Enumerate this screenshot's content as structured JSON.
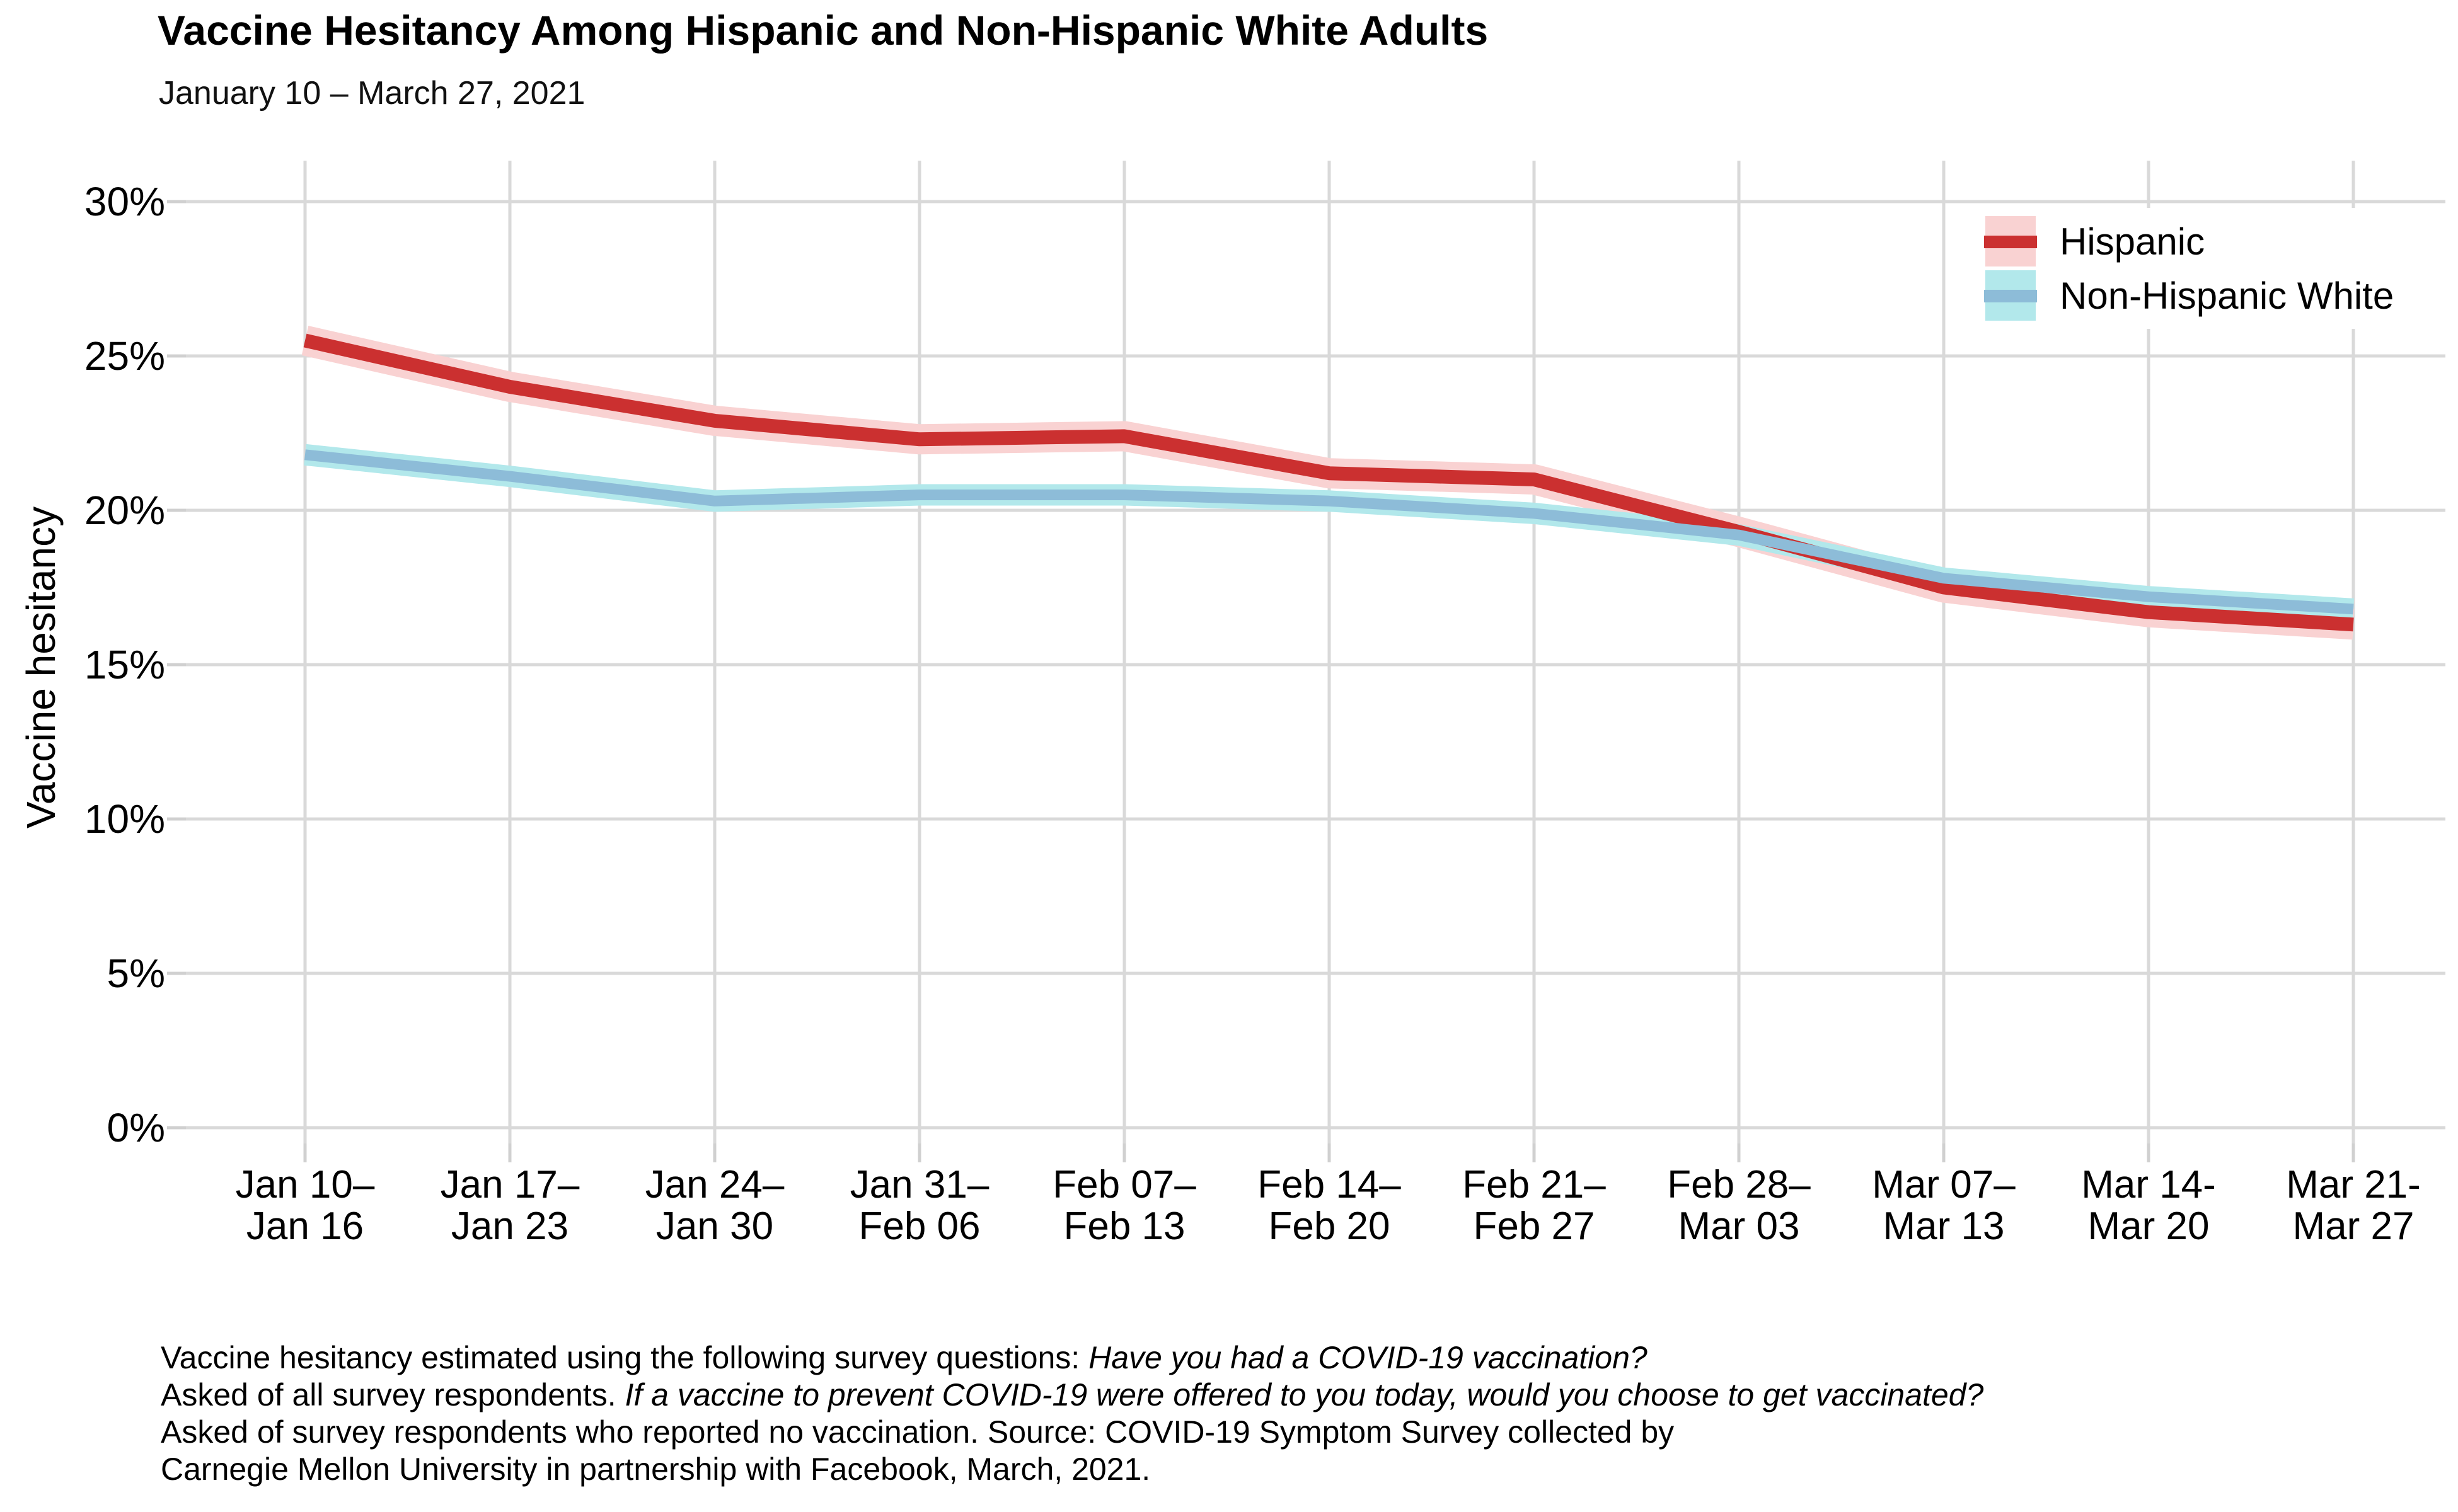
{
  "chart_data": {
    "type": "line",
    "title": "Vaccine Hesitancy Among Hispanic and Non-Hispanic White Adults",
    "subtitle": "January 10 – March 27, 2021",
    "ylabel": "Vaccine hesitancy",
    "xlabel": "",
    "ylim": [
      0,
      30
    ],
    "yticks": [
      0,
      5,
      10,
      15,
      20,
      25,
      30
    ],
    "ytick_labels": [
      "0%",
      "5%",
      "10%",
      "15%",
      "20%",
      "25%",
      "30%"
    ],
    "grid": true,
    "legend_position": "top-right-inside",
    "categories": [
      [
        "Jan 10–",
        "Jan 16"
      ],
      [
        "Jan 17–",
        "Jan 23"
      ],
      [
        "Jan 24–",
        "Jan 30"
      ],
      [
        "Jan 31–",
        "Feb 06"
      ],
      [
        "Feb 07–",
        "Feb 13"
      ],
      [
        "Feb 14–",
        "Feb 20"
      ],
      [
        "Feb 21–",
        "Feb 27"
      ],
      [
        "Feb 28–",
        "Mar 03"
      ],
      [
        "Mar 07–",
        "Mar 13"
      ],
      [
        "Mar 14-",
        "Mar 20"
      ],
      [
        "Mar 21-",
        "Mar 27"
      ]
    ],
    "series": [
      {
        "name": "Hispanic",
        "values": [
          25.5,
          24.0,
          22.9,
          22.3,
          22.4,
          21.2,
          21.0,
          19.3,
          17.5,
          16.7,
          16.3
        ],
        "line_color": "#cb3030",
        "ribbon_color": "#f9d2d2",
        "ci_half_width": 0.45
      },
      {
        "name": "Non-Hispanic White",
        "values": [
          21.8,
          21.1,
          20.3,
          20.5,
          20.5,
          20.3,
          19.9,
          19.2,
          17.8,
          17.2,
          16.8
        ],
        "line_color": "#8dbcd8",
        "ribbon_color": "#b2e8eb",
        "ci_half_width": 0.3
      }
    ],
    "caption_lines": [
      [
        {
          "text": "Vaccine hesitancy estimated using the following survey questions: ",
          "italic": false
        },
        {
          "text": "Have you had a COVID-19 vaccination?",
          "italic": true
        }
      ],
      [
        {
          "text": "Asked of all survey respondents. ",
          "italic": false
        },
        {
          "text": "If a vaccine to prevent COVID-19 were offered to you today, would you choose to get vaccinated?",
          "italic": true
        }
      ],
      [
        {
          "text": "Asked of survey respondents who reported no vaccination. Source: COVID-19 Symptom Survey collected by",
          "italic": false
        }
      ],
      [
        {
          "text": "Carnegie Mellon University in partnership with Facebook, March, 2021.",
          "italic": false
        }
      ]
    ],
    "colors": {
      "gridline": "#d9d9d9",
      "tick": "#d0d0d0",
      "text": "#000000"
    }
  }
}
